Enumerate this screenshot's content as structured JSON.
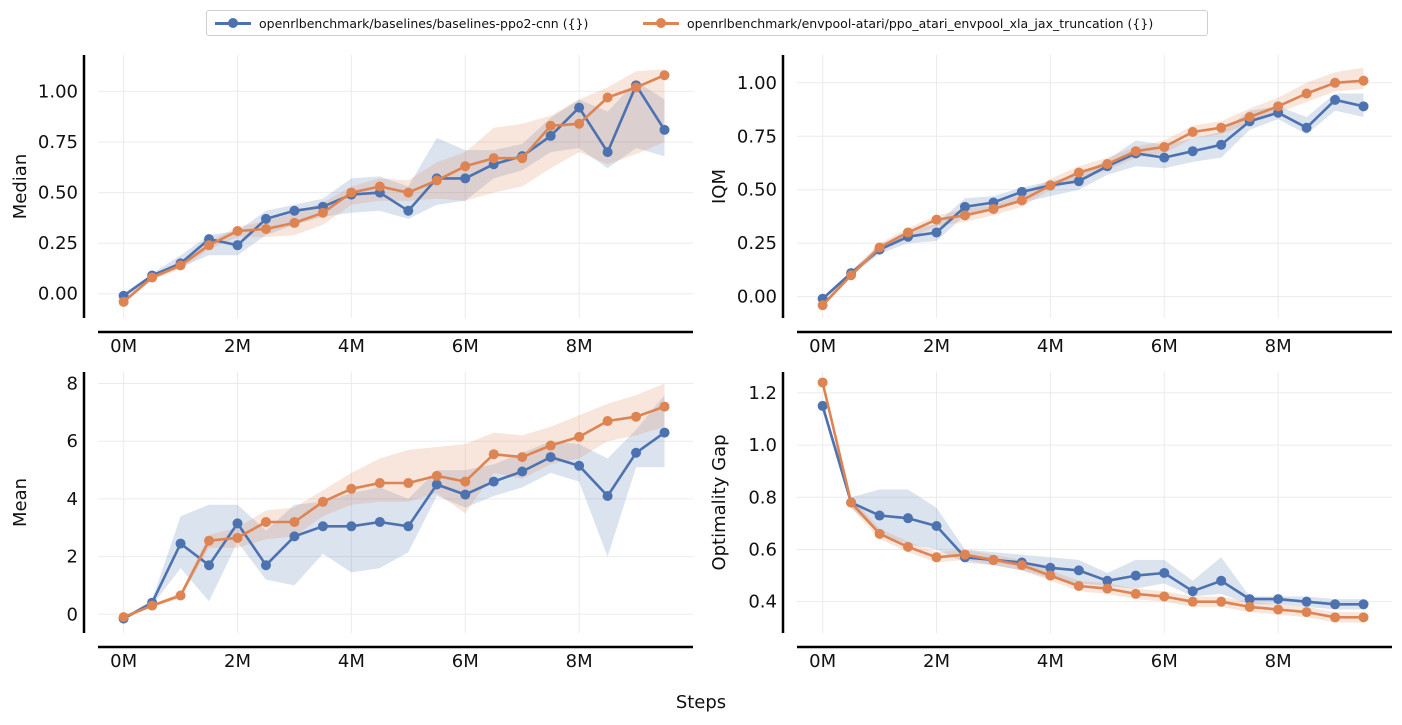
{
  "legend": {
    "series": [
      {
        "name": "openrlbenchmark/baselines/baselines-ppo2-cnn ({})",
        "color": "#4c72b0"
      },
      {
        "name": "openrlbenchmark/envpool-atari/ppo_atari_envpool_xla_jax_truncation ({})",
        "color": "#dd8452"
      }
    ]
  },
  "xlabel": "Steps",
  "chart_data": [
    {
      "type": "line",
      "ylabel": "Median",
      "xlabel": "",
      "xticks": [
        "0M",
        "2M",
        "4M",
        "6M",
        "8M"
      ],
      "xtick_values": [
        0,
        2,
        4,
        6,
        8
      ],
      "xlim": [
        -0.45,
        10.0
      ],
      "ylim": [
        -0.12,
        1.18
      ],
      "yticks": [
        "0.00",
        "0.25",
        "0.50",
        "0.75",
        "1.00"
      ],
      "ytick_values": [
        0.0,
        0.25,
        0.5,
        0.75,
        1.0
      ],
      "grid": true,
      "x": [
        0,
        0.5,
        1,
        1.5,
        2,
        2.5,
        3,
        3.5,
        4,
        4.5,
        5,
        5.5,
        6,
        6.5,
        7,
        7.5,
        8,
        8.5,
        9,
        9.5
      ],
      "series": [
        {
          "name": "openrlbenchmark/baselines/baselines-ppo2-cnn ({})",
          "values": [
            -0.01,
            0.09,
            0.15,
            0.27,
            0.24,
            0.37,
            0.41,
            0.43,
            0.49,
            0.5,
            0.41,
            0.57,
            0.57,
            0.64,
            0.68,
            0.78,
            0.92,
            0.7,
            1.03,
            0.81
          ],
          "upper": [
            0.0,
            0.1,
            0.19,
            0.29,
            0.31,
            0.41,
            0.44,
            0.47,
            0.57,
            0.58,
            0.53,
            0.77,
            0.71,
            0.71,
            0.74,
            0.87,
            0.96,
            0.9,
            1.05,
            0.96
          ],
          "lower": [
            -0.02,
            0.07,
            0.13,
            0.19,
            0.19,
            0.29,
            0.34,
            0.38,
            0.4,
            0.41,
            0.37,
            0.44,
            0.46,
            0.57,
            0.61,
            0.7,
            0.72,
            0.62,
            0.72,
            0.68
          ]
        },
        {
          "name": "openrlbenchmark/envpool-atari/ppo_atari_envpool_xla_jax_truncation ({})",
          "values": [
            -0.04,
            0.08,
            0.14,
            0.24,
            0.31,
            0.32,
            0.35,
            0.4,
            0.5,
            0.53,
            0.5,
            0.56,
            0.63,
            0.67,
            0.67,
            0.83,
            0.84,
            0.97,
            1.02,
            1.08
          ],
          "upper": [
            -0.03,
            0.09,
            0.16,
            0.26,
            0.33,
            0.36,
            0.4,
            0.45,
            0.53,
            0.57,
            0.56,
            0.65,
            0.7,
            0.82,
            0.84,
            0.88,
            0.96,
            1.02,
            1.1,
            1.11
          ],
          "lower": [
            -0.05,
            0.07,
            0.12,
            0.22,
            0.28,
            0.28,
            0.29,
            0.34,
            0.44,
            0.46,
            0.46,
            0.47,
            0.46,
            0.5,
            0.53,
            0.62,
            0.7,
            0.64,
            0.69,
            0.75
          ]
        }
      ]
    },
    {
      "type": "line",
      "ylabel": "IQM",
      "xlabel": "",
      "xticks": [
        "0M",
        "2M",
        "4M",
        "6M",
        "8M"
      ],
      "xtick_values": [
        0,
        2,
        4,
        6,
        8
      ],
      "xlim": [
        -0.45,
        10.0
      ],
      "ylim": [
        -0.1,
        1.13
      ],
      "yticks": [
        "0.00",
        "0.25",
        "0.50",
        "0.75",
        "1.00"
      ],
      "ytick_values": [
        0.0,
        0.25,
        0.5,
        0.75,
        1.0
      ],
      "grid": true,
      "x": [
        0,
        0.5,
        1,
        1.5,
        2,
        2.5,
        3,
        3.5,
        4,
        4.5,
        5,
        5.5,
        6,
        6.5,
        7,
        7.5,
        8,
        8.5,
        9,
        9.5
      ],
      "series": [
        {
          "name": "openrlbenchmark/baselines/baselines-ppo2-cnn ({})",
          "values": [
            -0.01,
            0.11,
            0.22,
            0.28,
            0.3,
            0.42,
            0.44,
            0.49,
            0.52,
            0.54,
            0.61,
            0.67,
            0.65,
            0.68,
            0.71,
            0.82,
            0.86,
            0.79,
            0.92,
            0.89
          ],
          "upper": [
            0.0,
            0.12,
            0.24,
            0.31,
            0.34,
            0.46,
            0.47,
            0.51,
            0.54,
            0.57,
            0.64,
            0.73,
            0.71,
            0.74,
            0.77,
            0.87,
            0.89,
            0.84,
            0.95,
            0.95
          ],
          "lower": [
            -0.02,
            0.1,
            0.2,
            0.25,
            0.26,
            0.38,
            0.41,
            0.44,
            0.47,
            0.5,
            0.57,
            0.61,
            0.6,
            0.63,
            0.65,
            0.78,
            0.83,
            0.76,
            0.87,
            0.84
          ]
        },
        {
          "name": "openrlbenchmark/envpool-atari/ppo_atari_envpool_xla_jax_truncation ({})",
          "values": [
            -0.04,
            0.1,
            0.23,
            0.3,
            0.36,
            0.38,
            0.41,
            0.45,
            0.52,
            0.58,
            0.62,
            0.68,
            0.7,
            0.77,
            0.79,
            0.84,
            0.89,
            0.95,
            1.0,
            1.01
          ],
          "upper": [
            -0.03,
            0.12,
            0.25,
            0.32,
            0.38,
            0.41,
            0.43,
            0.48,
            0.55,
            0.61,
            0.65,
            0.7,
            0.73,
            0.8,
            0.82,
            0.88,
            0.93,
            1.0,
            1.05,
            1.07
          ],
          "lower": [
            -0.05,
            0.09,
            0.21,
            0.27,
            0.33,
            0.35,
            0.38,
            0.42,
            0.5,
            0.55,
            0.59,
            0.65,
            0.67,
            0.74,
            0.76,
            0.81,
            0.86,
            0.91,
            0.96,
            0.97
          ]
        }
      ]
    },
    {
      "type": "line",
      "ylabel": "Mean",
      "xlabel": "",
      "xticks": [
        "0M",
        "2M",
        "4M",
        "6M",
        "8M"
      ],
      "xtick_values": [
        0,
        2,
        4,
        6,
        8
      ],
      "xlim": [
        -0.45,
        10.0
      ],
      "ylim": [
        -0.65,
        8.4
      ],
      "yticks": [
        "0",
        "2",
        "4",
        "6",
        "8"
      ],
      "ytick_values": [
        0,
        2,
        4,
        6,
        8
      ],
      "grid": true,
      "x": [
        0,
        0.5,
        1,
        1.5,
        2,
        2.5,
        3,
        3.5,
        4,
        4.5,
        5,
        5.5,
        6,
        6.5,
        7,
        7.5,
        8,
        8.5,
        9,
        9.5
      ],
      "series": [
        {
          "name": "openrlbenchmark/baselines/baselines-ppo2-cnn ({})",
          "values": [
            -0.15,
            0.4,
            2.45,
            1.7,
            3.15,
            1.7,
            2.7,
            3.05,
            3.05,
            3.2,
            3.05,
            4.5,
            4.15,
            4.6,
            4.95,
            5.45,
            5.15,
            4.1,
            5.6,
            6.3
          ],
          "upper": [
            -0.1,
            0.5,
            3.4,
            3.8,
            3.8,
            2.9,
            3.8,
            3.9,
            4.2,
            4.4,
            4.0,
            5.0,
            5.0,
            5.2,
            5.6,
            6.0,
            5.9,
            5.4,
            6.4,
            7.6
          ],
          "lower": [
            -0.2,
            0.3,
            1.6,
            0.45,
            2.5,
            1.2,
            1.0,
            2.1,
            1.45,
            1.6,
            2.15,
            4.1,
            3.7,
            4.1,
            4.4,
            4.9,
            4.6,
            2.0,
            5.1,
            5.1
          ]
        },
        {
          "name": "openrlbenchmark/envpool-atari/ppo_atari_envpool_xla_jax_truncation ({})",
          "values": [
            -0.1,
            0.3,
            0.65,
            2.55,
            2.65,
            3.2,
            3.2,
            3.9,
            4.35,
            4.55,
            4.55,
            4.8,
            4.6,
            5.55,
            5.45,
            5.85,
            6.15,
            6.7,
            6.85,
            7.2
          ],
          "upper": [
            -0.05,
            0.35,
            0.75,
            2.75,
            3.0,
            3.6,
            3.7,
            4.3,
            4.9,
            5.4,
            5.7,
            5.8,
            5.9,
            6.3,
            6.2,
            6.5,
            6.9,
            7.3,
            7.6,
            8.0
          ],
          "lower": [
            -0.15,
            0.25,
            0.55,
            2.3,
            2.3,
            2.6,
            2.7,
            3.4,
            3.8,
            3.9,
            3.9,
            4.2,
            3.5,
            4.9,
            4.7,
            5.2,
            5.4,
            6.0,
            6.2,
            6.5
          ]
        }
      ]
    },
    {
      "type": "line",
      "ylabel": "Optimality Gap",
      "xlabel": "",
      "xticks": [
        "0M",
        "2M",
        "4M",
        "6M",
        "8M"
      ],
      "xtick_values": [
        0,
        2,
        4,
        6,
        8
      ],
      "xlim": [
        -0.45,
        10.0
      ],
      "ylim": [
        0.28,
        1.28
      ],
      "yticks": [
        "0.4",
        "0.6",
        "0.8",
        "1.0",
        "1.2"
      ],
      "ytick_values": [
        0.4,
        0.6,
        0.8,
        1.0,
        1.2
      ],
      "grid": true,
      "x": [
        0,
        0.5,
        1,
        1.5,
        2,
        2.5,
        3,
        3.5,
        4,
        4.5,
        5,
        5.5,
        6,
        6.5,
        7,
        7.5,
        8,
        8.5,
        9,
        9.5
      ],
      "series": [
        {
          "name": "openrlbenchmark/baselines/baselines-ppo2-cnn ({})",
          "values": [
            1.15,
            0.78,
            0.73,
            0.72,
            0.69,
            0.57,
            0.56,
            0.55,
            0.53,
            0.52,
            0.48,
            0.5,
            0.51,
            0.44,
            0.48,
            0.41,
            0.41,
            0.4,
            0.39,
            0.39
          ],
          "upper": [
            1.17,
            0.8,
            0.83,
            0.83,
            0.76,
            0.6,
            0.59,
            0.58,
            0.57,
            0.56,
            0.51,
            0.56,
            0.56,
            0.48,
            0.57,
            0.42,
            0.42,
            0.42,
            0.41,
            0.41
          ],
          "lower": [
            1.13,
            0.76,
            0.66,
            0.62,
            0.6,
            0.55,
            0.54,
            0.52,
            0.49,
            0.47,
            0.46,
            0.45,
            0.47,
            0.42,
            0.43,
            0.39,
            0.39,
            0.38,
            0.37,
            0.37
          ]
        },
        {
          "name": "openrlbenchmark/envpool-atari/ppo_atari_envpool_xla_jax_truncation ({})",
          "values": [
            1.24,
            0.78,
            0.66,
            0.61,
            0.57,
            0.58,
            0.56,
            0.54,
            0.5,
            0.46,
            0.45,
            0.43,
            0.42,
            0.4,
            0.4,
            0.38,
            0.37,
            0.36,
            0.34,
            0.34
          ],
          "upper": [
            1.25,
            0.8,
            0.68,
            0.63,
            0.59,
            0.6,
            0.58,
            0.56,
            0.52,
            0.48,
            0.47,
            0.45,
            0.44,
            0.42,
            0.42,
            0.4,
            0.39,
            0.38,
            0.36,
            0.36
          ],
          "lower": [
            1.23,
            0.76,
            0.64,
            0.59,
            0.55,
            0.56,
            0.54,
            0.52,
            0.48,
            0.44,
            0.43,
            0.41,
            0.4,
            0.38,
            0.38,
            0.36,
            0.35,
            0.34,
            0.32,
            0.32
          ]
        }
      ]
    }
  ]
}
